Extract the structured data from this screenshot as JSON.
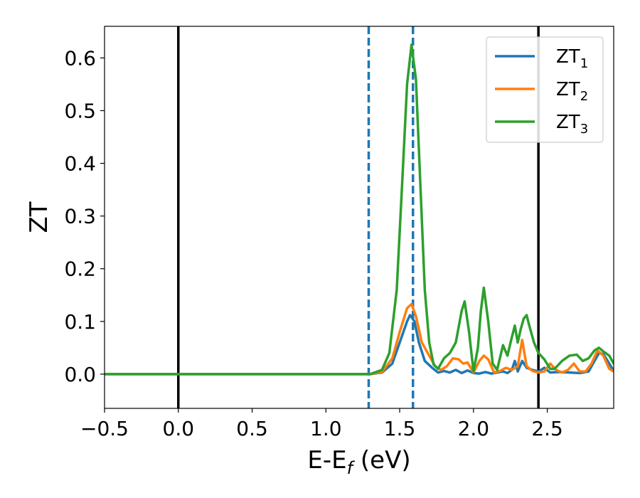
{
  "chart_data": {
    "type": "line",
    "title": "",
    "xlabel": "E-E_f (eV)",
    "xlabel_parts": {
      "main": "E-E",
      "sub": "f",
      "rest": " (eV)"
    },
    "ylabel": "ZT",
    "xlim": [
      -0.5,
      2.95
    ],
    "ylim": [
      -0.065,
      0.66
    ],
    "xticks": [
      -0.5,
      0.0,
      0.5,
      1.0,
      1.5,
      2.0,
      2.5
    ],
    "xtick_labels": [
      "−0.5",
      "0.0",
      "0.5",
      "1.0",
      "1.5",
      "2.0",
      "2.5"
    ],
    "yticks": [
      0.0,
      0.1,
      0.2,
      0.3,
      0.4,
      0.5,
      0.6
    ],
    "ytick_labels": [
      "0.0",
      "0.1",
      "0.2",
      "0.3",
      "0.4",
      "0.5",
      "0.6"
    ],
    "grid": false,
    "legend_position": "top-right",
    "vlines": [
      {
        "x": 0.0,
        "color": "#000000",
        "style": "solid"
      },
      {
        "x": 2.44,
        "color": "#000000",
        "style": "solid"
      },
      {
        "x": 1.29,
        "color": "#1f77b4",
        "style": "dashed"
      },
      {
        "x": 1.59,
        "color": "#1f77b4",
        "style": "dashed"
      }
    ],
    "series": [
      {
        "name": "ZT_1",
        "label_main": "ZT",
        "label_sub": "1",
        "color": "#1f77b4",
        "points": [
          [
            -0.5,
            0.0
          ],
          [
            1.3,
            0.0
          ],
          [
            1.38,
            0.003
          ],
          [
            1.45,
            0.02
          ],
          [
            1.5,
            0.06
          ],
          [
            1.55,
            0.1
          ],
          [
            1.57,
            0.112
          ],
          [
            1.6,
            0.1
          ],
          [
            1.63,
            0.06
          ],
          [
            1.67,
            0.025
          ],
          [
            1.72,
            0.012
          ],
          [
            1.76,
            0.003
          ],
          [
            1.8,
            0.006
          ],
          [
            1.84,
            0.003
          ],
          [
            1.88,
            0.008
          ],
          [
            1.92,
            0.002
          ],
          [
            1.96,
            0.007
          ],
          [
            2.0,
            0.002
          ],
          [
            2.04,
            0.001
          ],
          [
            2.08,
            0.004
          ],
          [
            2.12,
            0.001
          ],
          [
            2.16,
            0.003
          ],
          [
            2.2,
            0.005
          ],
          [
            2.23,
            0.002
          ],
          [
            2.26,
            0.008
          ],
          [
            2.28,
            0.025
          ],
          [
            2.3,
            0.005
          ],
          [
            2.33,
            0.025
          ],
          [
            2.36,
            0.012
          ],
          [
            2.4,
            0.008
          ],
          [
            2.44,
            0.005
          ],
          [
            2.48,
            0.012
          ],
          [
            2.52,
            0.003
          ],
          [
            2.58,
            0.004
          ],
          [
            2.65,
            0.003
          ],
          [
            2.72,
            0.002
          ],
          [
            2.78,
            0.005
          ],
          [
            2.82,
            0.025
          ],
          [
            2.85,
            0.04
          ],
          [
            2.88,
            0.038
          ],
          [
            2.92,
            0.02
          ],
          [
            2.95,
            0.006
          ]
        ]
      },
      {
        "name": "ZT_2",
        "label_main": "ZT",
        "label_sub": "2",
        "color": "#ff7f0e",
        "points": [
          [
            -0.5,
            0.0
          ],
          [
            1.3,
            0.0
          ],
          [
            1.38,
            0.004
          ],
          [
            1.45,
            0.03
          ],
          [
            1.5,
            0.08
          ],
          [
            1.55,
            0.125
          ],
          [
            1.58,
            0.133
          ],
          [
            1.61,
            0.11
          ],
          [
            1.65,
            0.06
          ],
          [
            1.7,
            0.035
          ],
          [
            1.74,
            0.015
          ],
          [
            1.78,
            0.008
          ],
          [
            1.82,
            0.015
          ],
          [
            1.86,
            0.03
          ],
          [
            1.9,
            0.028
          ],
          [
            1.93,
            0.02
          ],
          [
            1.96,
            0.022
          ],
          [
            2.0,
            0.003
          ],
          [
            2.04,
            0.025
          ],
          [
            2.07,
            0.035
          ],
          [
            2.1,
            0.028
          ],
          [
            2.14,
            0.003
          ],
          [
            2.18,
            0.006
          ],
          [
            2.22,
            0.012
          ],
          [
            2.26,
            0.008
          ],
          [
            2.3,
            0.015
          ],
          [
            2.33,
            0.065
          ],
          [
            2.36,
            0.015
          ],
          [
            2.4,
            0.006
          ],
          [
            2.44,
            0.003
          ],
          [
            2.48,
            0.005
          ],
          [
            2.52,
            0.02
          ],
          [
            2.56,
            0.008
          ],
          [
            2.6,
            0.003
          ],
          [
            2.64,
            0.008
          ],
          [
            2.68,
            0.02
          ],
          [
            2.72,
            0.005
          ],
          [
            2.76,
            0.005
          ],
          [
            2.8,
            0.02
          ],
          [
            2.84,
            0.045
          ],
          [
            2.88,
            0.035
          ],
          [
            2.92,
            0.01
          ],
          [
            2.95,
            0.005
          ]
        ]
      },
      {
        "name": "ZT_3",
        "label_main": "ZT",
        "label_sub": "3",
        "color": "#2ca02c",
        "points": [
          [
            -0.5,
            0.0
          ],
          [
            1.3,
            0.0
          ],
          [
            1.38,
            0.008
          ],
          [
            1.43,
            0.04
          ],
          [
            1.48,
            0.16
          ],
          [
            1.52,
            0.38
          ],
          [
            1.55,
            0.55
          ],
          [
            1.58,
            0.625
          ],
          [
            1.61,
            0.56
          ],
          [
            1.64,
            0.36
          ],
          [
            1.67,
            0.16
          ],
          [
            1.7,
            0.06
          ],
          [
            1.73,
            0.018
          ],
          [
            1.76,
            0.01
          ],
          [
            1.8,
            0.03
          ],
          [
            1.84,
            0.04
          ],
          [
            1.88,
            0.06
          ],
          [
            1.92,
            0.12
          ],
          [
            1.94,
            0.138
          ],
          [
            1.97,
            0.08
          ],
          [
            2.0,
            0.005
          ],
          [
            2.03,
            0.05
          ],
          [
            2.05,
            0.12
          ],
          [
            2.07,
            0.164
          ],
          [
            2.1,
            0.1
          ],
          [
            2.13,
            0.02
          ],
          [
            2.16,
            0.008
          ],
          [
            2.2,
            0.055
          ],
          [
            2.23,
            0.035
          ],
          [
            2.26,
            0.07
          ],
          [
            2.28,
            0.092
          ],
          [
            2.3,
            0.06
          ],
          [
            2.32,
            0.085
          ],
          [
            2.34,
            0.105
          ],
          [
            2.36,
            0.112
          ],
          [
            2.38,
            0.09
          ],
          [
            2.41,
            0.06
          ],
          [
            2.44,
            0.04
          ],
          [
            2.48,
            0.028
          ],
          [
            2.52,
            0.01
          ],
          [
            2.55,
            0.01
          ],
          [
            2.6,
            0.025
          ],
          [
            2.65,
            0.035
          ],
          [
            2.7,
            0.037
          ],
          [
            2.74,
            0.025
          ],
          [
            2.78,
            0.03
          ],
          [
            2.82,
            0.045
          ],
          [
            2.85,
            0.05
          ],
          [
            2.88,
            0.043
          ],
          [
            2.92,
            0.035
          ],
          [
            2.95,
            0.02
          ]
        ]
      }
    ]
  }
}
